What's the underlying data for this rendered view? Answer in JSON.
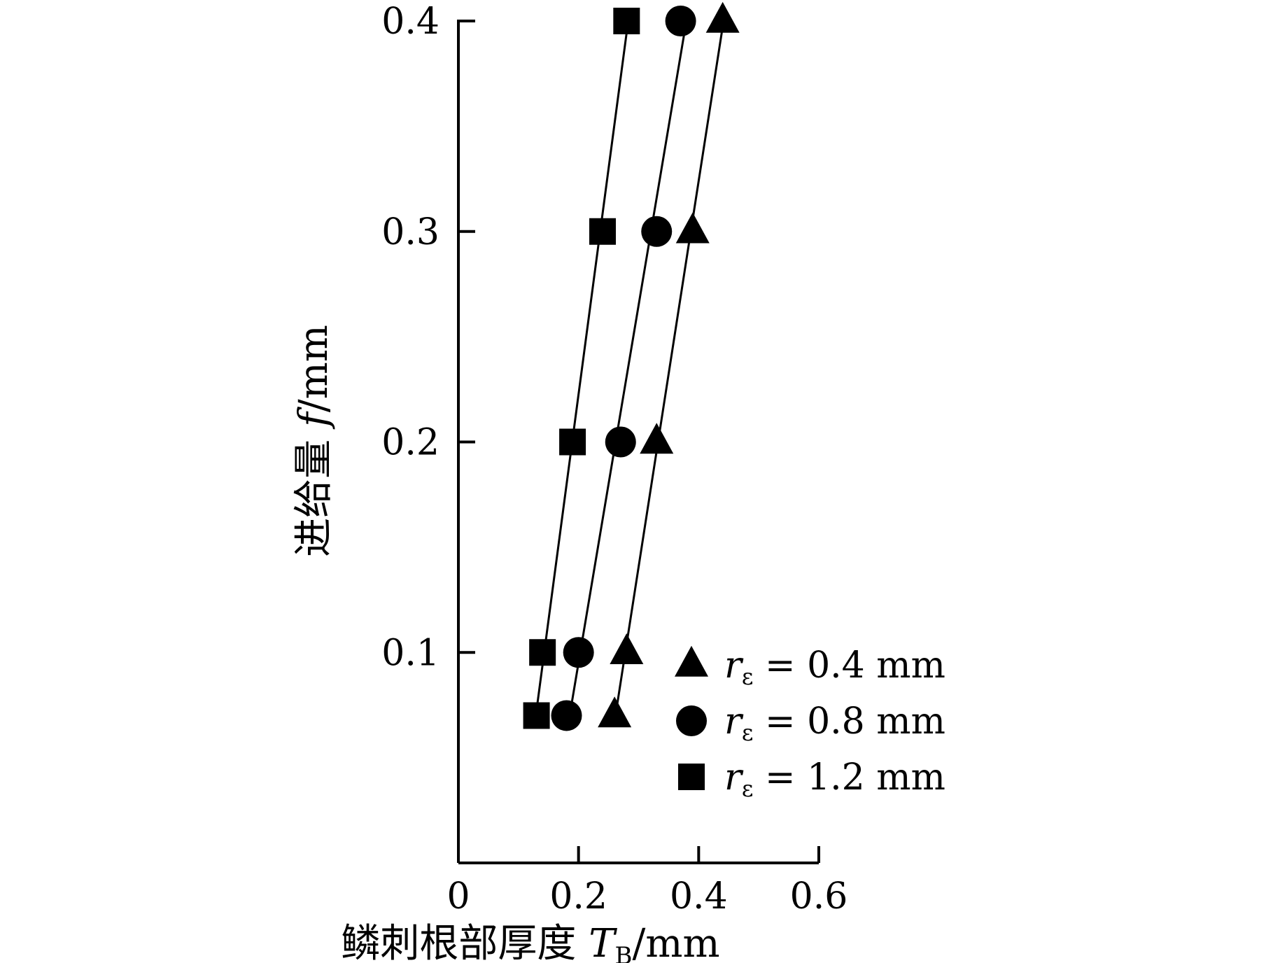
{
  "chart_data": {
    "type": "scatter",
    "xlabel": {
      "main": "鳞刺根部厚度 ",
      "symbol": "T",
      "subscript": "B",
      "unit": "/mm"
    },
    "ylabel": {
      "main": "进给量 ",
      "symbol": "f",
      "unit": "/mm"
    },
    "xlim": [
      0,
      0.6
    ],
    "ylim": [
      0,
      0.4
    ],
    "xticks": [
      0,
      0.2,
      0.4,
      0.6
    ],
    "xtick_labels": [
      "0",
      "0.2",
      "0.4",
      "0.6"
    ],
    "yticks": [
      0.1,
      0.2,
      0.3,
      0.4
    ],
    "ytick_labels": [
      "0.1",
      "0.2",
      "0.3",
      "0.4"
    ],
    "grid": false,
    "legend_position": "bottom-right",
    "series": [
      {
        "name": "r_ε = 0.4 mm",
        "label_symbol": "r",
        "label_subscript": "ε",
        "label_text": " = 0.4 mm",
        "marker": "triangle",
        "x": [
          0.26,
          0.28,
          0.33,
          0.39,
          0.44
        ],
        "y": [
          0.07,
          0.1,
          0.2,
          0.3,
          0.4
        ]
      },
      {
        "name": "r_ε = 0.8 mm",
        "label_symbol": "r",
        "label_subscript": "ε",
        "label_text": " = 0.8 mm",
        "marker": "circle",
        "x": [
          0.18,
          0.2,
          0.27,
          0.33,
          0.37
        ],
        "y": [
          0.07,
          0.1,
          0.2,
          0.3,
          0.4
        ]
      },
      {
        "name": "r_ε = 1.2 mm",
        "label_symbol": "r",
        "label_subscript": "ε",
        "label_text": " = 1.2 mm",
        "marker": "square",
        "x": [
          0.13,
          0.14,
          0.19,
          0.24,
          0.28
        ],
        "y": [
          0.07,
          0.1,
          0.2,
          0.3,
          0.4
        ]
      }
    ]
  }
}
